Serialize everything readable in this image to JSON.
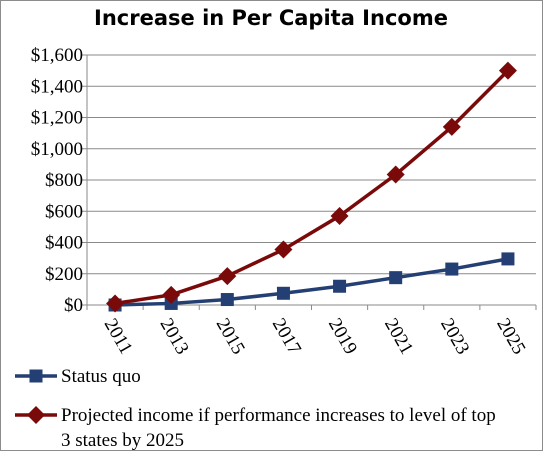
{
  "chart_data": {
    "type": "line",
    "title": "Increase in Per Capita Income",
    "xlabel": "",
    "ylabel": "",
    "x": [
      "2011",
      "2013",
      "2015",
      "2017",
      "2019",
      "2021",
      "2023",
      "2025"
    ],
    "ylim": [
      0,
      1600
    ],
    "yticks": [
      0,
      200,
      400,
      600,
      800,
      1000,
      1200,
      1400,
      1600
    ],
    "ytick_labels": [
      "$0",
      "$200",
      "$400",
      "$600",
      "$800",
      "$1,000",
      "$1,200",
      "$1,400",
      "$1,600"
    ],
    "grid": "horizontal",
    "legend_position": "bottom",
    "series": [
      {
        "name": "Status quo",
        "color": "#243F73",
        "marker": "square",
        "values": [
          0,
          10,
          35,
          75,
          120,
          175,
          230,
          295
        ]
      },
      {
        "name": "Projected income if performance increases to level of top 3 states by 2025",
        "name_lines": [
          "Projected income if performance increases to level of top",
          "3 states by 2025"
        ],
        "color": "#7A0A0A",
        "marker": "diamond",
        "values": [
          10,
          65,
          185,
          355,
          570,
          835,
          1140,
          1500
        ]
      }
    ]
  }
}
